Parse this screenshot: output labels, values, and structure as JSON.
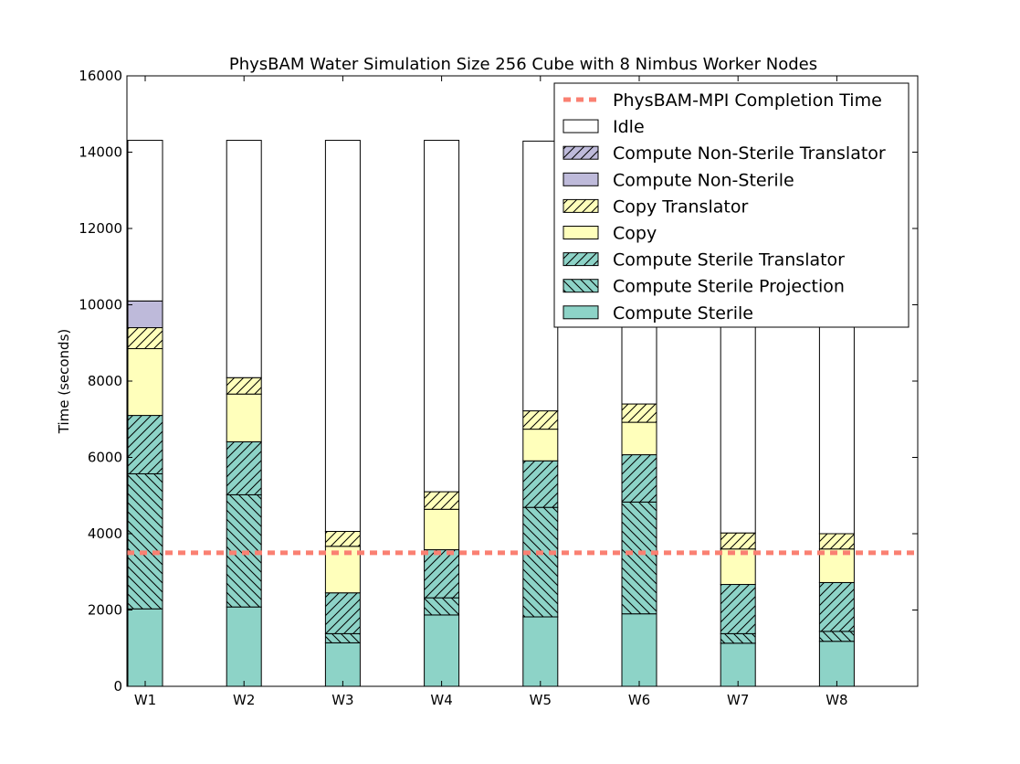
{
  "chart_data": {
    "type": "bar",
    "stacked": true,
    "title": "PhysBAM Water Simulation Size 256 Cube with 8 Nimbus Worker Nodes",
    "xlabel": "",
    "ylabel": "Time (seconds)",
    "ylim": [
      0,
      16000
    ],
    "yticks": [
      0,
      2000,
      4000,
      6000,
      8000,
      10000,
      12000,
      14000,
      16000
    ],
    "categories": [
      "W1",
      "W2",
      "W3",
      "W4",
      "W5",
      "W6",
      "W7",
      "W8"
    ],
    "grid": false,
    "legend_position": "top-right",
    "series": [
      {
        "name": "Compute Sterile",
        "color": "#8dd3c7",
        "hatch": "none",
        "values": [
          2030,
          2080,
          1140,
          1870,
          1820,
          1900,
          1130,
          1180
        ]
      },
      {
        "name": "Compute Sterile Projection",
        "color": "#8dd3c7",
        "hatch": "back",
        "values": [
          3540,
          2940,
          240,
          450,
          2870,
          2930,
          250,
          260
        ]
      },
      {
        "name": "Compute Sterile Translator",
        "color": "#8dd3c7",
        "hatch": "forward",
        "values": [
          1530,
          1390,
          1070,
          1260,
          1220,
          1240,
          1290,
          1280
        ]
      },
      {
        "name": "Copy",
        "color": "#ffffbb",
        "hatch": "none",
        "values": [
          1750,
          1250,
          1220,
          1060,
          830,
          850,
          930,
          880
        ]
      },
      {
        "name": "Copy Translator",
        "color": "#ffffbb",
        "hatch": "forward",
        "values": [
          550,
          430,
          390,
          460,
          480,
          480,
          420,
          400
        ]
      },
      {
        "name": "Compute Non-Sterile",
        "color": "#bebada",
        "hatch": "none",
        "values": [
          700,
          0,
          0,
          0,
          0,
          0,
          0,
          0
        ]
      },
      {
        "name": "Compute Non-Sterile Translator",
        "color": "#bebada",
        "hatch": "forward",
        "values": [
          0,
          0,
          0,
          0,
          0,
          0,
          0,
          0
        ]
      },
      {
        "name": "Idle",
        "color": "#ffffff",
        "hatch": "none",
        "values": [
          4210,
          6220,
          10250,
          9210,
          7070,
          6910,
          10290,
          10320
        ]
      }
    ],
    "reference_line": {
      "name": "PhysBAM-MPI Completion Time",
      "value": 3500,
      "color": "#fa8072",
      "style": "dashed"
    },
    "legend_order": [
      "PhysBAM-MPI Completion Time",
      "Idle",
      "Compute Non-Sterile Translator",
      "Compute Non-Sterile",
      "Copy Translator",
      "Copy",
      "Compute Sterile Translator",
      "Compute Sterile Projection",
      "Compute Sterile"
    ]
  }
}
